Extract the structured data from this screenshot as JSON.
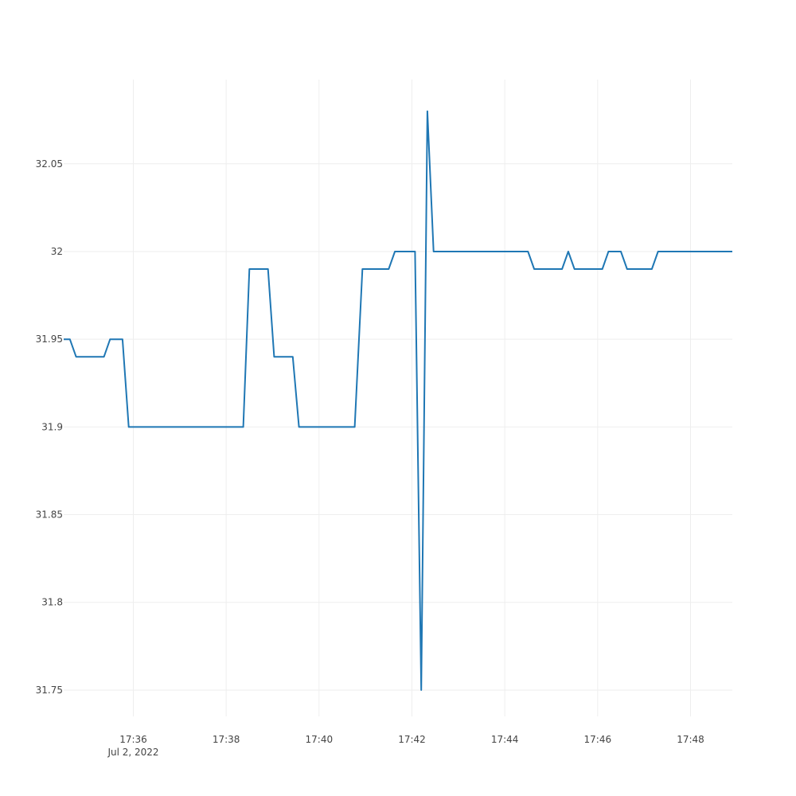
{
  "chart_data": {
    "type": "line",
    "title": "",
    "xlabel": "",
    "ylabel": "",
    "x_date_label": "Jul 2, 2022",
    "xlim": [
      "17:34:30",
      "17:48:54"
    ],
    "ylim": [
      31.735,
      32.098
    ],
    "grid": true,
    "x_ticks": [
      "17:36",
      "17:38",
      "17:40",
      "17:42",
      "17:44",
      "17:46",
      "17:48"
    ],
    "y_ticks": [
      31.75,
      31.8,
      31.85,
      31.9,
      31.95,
      32,
      32.05
    ],
    "y_tick_labels": [
      "31.75",
      "31.8",
      "31.85",
      "31.9",
      "31.95",
      "32",
      "32.05"
    ],
    "line_color": "#1f77b4",
    "series": [
      {
        "x": [
          "17:34:30",
          "17:34:38",
          "17:34:46",
          "17:35:22",
          "17:35:30",
          "17:35:46",
          "17:35:54",
          "17:38:22",
          "17:38:30",
          "17:38:54",
          "17:39:02",
          "17:39:26",
          "17:39:34",
          "17:40:46",
          "17:40:56",
          "17:41:30",
          "17:41:38",
          "17:42:04",
          "17:42:12",
          "17:42:20",
          "17:42:28",
          "17:44:30",
          "17:44:38",
          "17:45:14",
          "17:45:22",
          "17:45:30",
          "17:46:06",
          "17:46:14",
          "17:46:30",
          "17:46:38",
          "17:47:10",
          "17:47:18",
          "17:48:54"
        ],
        "y": [
          31.95,
          31.95,
          31.94,
          31.94,
          31.95,
          31.95,
          31.9,
          31.9,
          31.99,
          31.99,
          31.94,
          31.94,
          31.9,
          31.9,
          31.99,
          31.99,
          32,
          32,
          31.75,
          32.08,
          32,
          32,
          31.99,
          31.99,
          32,
          31.99,
          31.99,
          32,
          32,
          31.99,
          31.99,
          32,
          32
        ]
      }
    ]
  }
}
